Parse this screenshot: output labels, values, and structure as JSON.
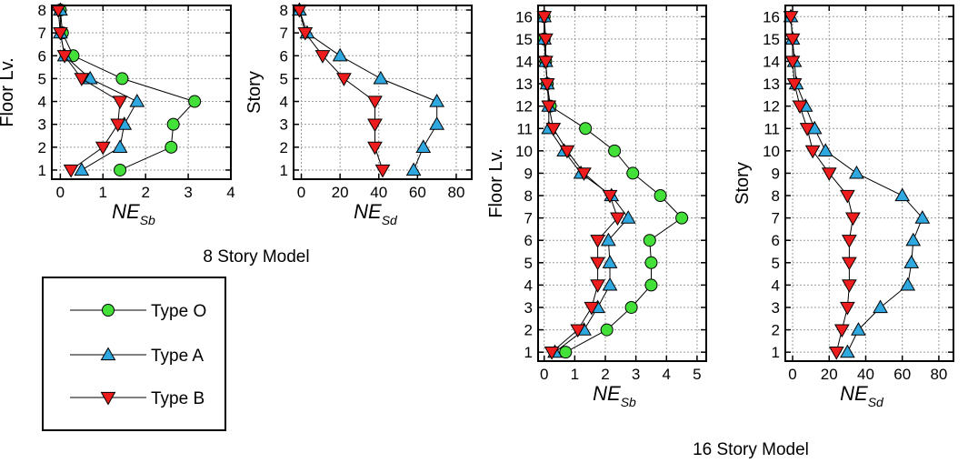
{
  "figure": {
    "caption_8": "8 Story Model",
    "caption_16": "16 Story Model"
  },
  "legend": {
    "items": [
      {
        "label": "Type O",
        "marker": "circle",
        "color": "#44e03a"
      },
      {
        "label": "Type A",
        "marker": "triangle-up",
        "color": "#2fa8e0"
      },
      {
        "label": "Type B",
        "marker": "triangle-down",
        "color": "#ee1c1c"
      }
    ]
  },
  "chart_data": [
    {
      "type": "line",
      "xlabel_main": "NE",
      "xlabel_sub": "Sb",
      "ylabel": "Floor Lv.",
      "xlim": [
        -0.2,
        4
      ],
      "ylim": [
        0.6,
        8.2
      ],
      "xticks": [
        "0",
        "1",
        "2",
        "3",
        "4"
      ],
      "yticks": [
        "1",
        "2",
        "3",
        "4",
        "5",
        "6",
        "7",
        "8"
      ],
      "grid": true,
      "series": [
        {
          "name": "Type O",
          "x": [
            1.4,
            2.6,
            2.65,
            3.15,
            1.45,
            0.3,
            0.05,
            0.0
          ],
          "y": [
            1,
            2,
            3,
            4,
            5,
            6,
            7,
            8
          ]
        },
        {
          "name": "Type A",
          "x": [
            0.5,
            1.4,
            1.5,
            1.8,
            0.7,
            0.1,
            0.0,
            0.0
          ],
          "y": [
            1,
            2,
            3,
            4,
            5,
            6,
            7,
            8
          ]
        },
        {
          "name": "Type B",
          "x": [
            0.25,
            1.0,
            1.35,
            1.4,
            0.5,
            0.1,
            0.0,
            -0.05
          ],
          "y": [
            1,
            2,
            3,
            4,
            5,
            6,
            7,
            8
          ]
        }
      ]
    },
    {
      "type": "line",
      "xlabel_main": "NE",
      "xlabel_sub": "Sd",
      "ylabel": "Story",
      "xlim": [
        -4,
        88
      ],
      "ylim": [
        0.6,
        8.2
      ],
      "xticks": [
        "0",
        "20",
        "40",
        "60",
        "80"
      ],
      "yticks": [
        "1",
        "2",
        "3",
        "4",
        "5",
        "6",
        "7",
        "8"
      ],
      "grid": true,
      "series": [
        {
          "name": "Type A",
          "x": [
            58,
            63,
            70,
            70,
            41,
            20,
            3,
            -1
          ],
          "y": [
            1,
            2,
            3,
            4,
            5,
            6,
            7,
            8
          ]
        },
        {
          "name": "Type B",
          "x": [
            42,
            38,
            38,
            38,
            22,
            11,
            2,
            -1
          ],
          "y": [
            1,
            2,
            3,
            4,
            5,
            6,
            7,
            8
          ]
        }
      ]
    },
    {
      "type": "line",
      "xlabel_main": "NE",
      "xlabel_sub": "Sb",
      "ylabel": "Floor Lv.",
      "xlim": [
        -0.2,
        5.3
      ],
      "ylim": [
        0.6,
        16.5
      ],
      "xticks": [
        "0",
        "1",
        "2",
        "3",
        "4",
        "5"
      ],
      "yticks": [
        "1",
        "2",
        "3",
        "4",
        "5",
        "6",
        "7",
        "8",
        "9",
        "10",
        "11",
        "12",
        "13",
        "14",
        "15",
        "16"
      ],
      "grid": true,
      "series": [
        {
          "name": "Type O",
          "x": [
            0.7,
            2.05,
            2.85,
            3.5,
            3.5,
            3.45,
            4.5,
            3.8,
            2.9,
            2.3,
            1.35,
            0.2,
            0.1,
            0.05,
            0.0,
            0.0
          ],
          "y": [
            1,
            2,
            3,
            4,
            5,
            6,
            7,
            8,
            9,
            10,
            11,
            12,
            13,
            14,
            15,
            16
          ]
        },
        {
          "name": "Type A",
          "x": [
            0.35,
            1.3,
            1.75,
            2.15,
            2.15,
            2.1,
            2.75,
            2.2,
            1.2,
            0.65,
            0.15,
            0.15,
            0.1,
            0.05,
            0.0,
            0.0
          ],
          "y": [
            1,
            2,
            3,
            4,
            5,
            6,
            7,
            8,
            9,
            10,
            11,
            12,
            13,
            14,
            15,
            16
          ]
        },
        {
          "name": "Type B",
          "x": [
            0.25,
            1.1,
            1.55,
            1.75,
            1.75,
            1.75,
            2.4,
            2.15,
            1.3,
            0.75,
            0.3,
            0.15,
            0.1,
            0.05,
            0.05,
            0.0
          ],
          "y": [
            1,
            2,
            3,
            4,
            5,
            6,
            7,
            8,
            9,
            10,
            11,
            12,
            13,
            14,
            15,
            16
          ]
        }
      ]
    },
    {
      "type": "line",
      "xlabel_main": "NE",
      "xlabel_sub": "Sd",
      "ylabel": "Story",
      "xlim": [
        -4,
        88
      ],
      "ylim": [
        0.6,
        16.5
      ],
      "xticks": [
        "0",
        "20",
        "40",
        "60",
        "80"
      ],
      "yticks": [
        "1",
        "2",
        "3",
        "4",
        "5",
        "6",
        "7",
        "8",
        "9",
        "10",
        "11",
        "12",
        "13",
        "14",
        "15",
        "16"
      ],
      "grid": true,
      "series": [
        {
          "name": "Type A",
          "x": [
            30,
            36,
            48,
            63,
            65,
            66,
            71,
            60,
            35,
            18,
            12,
            7,
            2,
            1,
            0,
            -1
          ],
          "y": [
            1,
            2,
            3,
            4,
            5,
            6,
            7,
            8,
            9,
            10,
            11,
            12,
            13,
            14,
            15,
            16
          ]
        },
        {
          "name": "Type B",
          "x": [
            24,
            27,
            30,
            31,
            31,
            31,
            33,
            30,
            20,
            11,
            8,
            4,
            1,
            0,
            0,
            -1
          ],
          "y": [
            1,
            2,
            3,
            4,
            5,
            6,
            7,
            8,
            9,
            10,
            11,
            12,
            13,
            14,
            15,
            16
          ]
        }
      ]
    }
  ]
}
